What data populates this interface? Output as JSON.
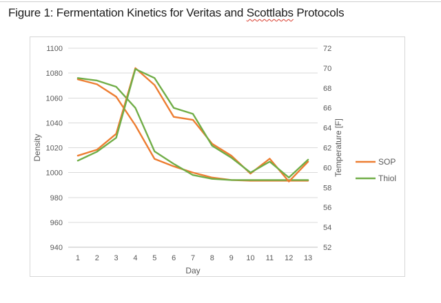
{
  "title": {
    "prefix": "Figure 1: Fermentation Kinetics for Veritas and ",
    "misspelled_word": "Scottlabs",
    "suffix": " Protocols"
  },
  "colors": {
    "sop_orange": "#ED7D31",
    "thiol_green": "#70AD47",
    "gridline": "#D9D9D9",
    "axis_line": "#BFBFBF",
    "tick_text": "#595959",
    "legend_text": "#404040",
    "spellcheck_red": "#d93a2b"
  },
  "chart_data": {
    "type": "line",
    "x": [
      1,
      2,
      3,
      4,
      5,
      6,
      7,
      8,
      9,
      10,
      11,
      12,
      13
    ],
    "xlabel": "Day",
    "y_left": {
      "label": "Density",
      "min": 940,
      "max": 1100,
      "ticks": [
        940,
        960,
        980,
        1000,
        1020,
        1040,
        1060,
        1080,
        1100
      ]
    },
    "y_right": {
      "label": "Temperature [F]",
      "min": 52,
      "max": 72,
      "ticks": [
        52,
        54,
        56,
        58,
        60,
        62,
        64,
        66,
        68,
        70,
        72
      ]
    },
    "grid": "horizontal",
    "legend_position": "right",
    "legend": [
      {
        "name": "SOP",
        "color": "#ED7D31"
      },
      {
        "name": "Thiol",
        "color": "#70AD47"
      }
    ],
    "series": [
      {
        "name": "SOP",
        "measure": "density",
        "axis": "left",
        "color": "#ED7D31",
        "values": [
          1075,
          1071,
          1061,
          1038,
          1011,
          1005,
          1000,
          996,
          994,
          993.5,
          993.5,
          993.5,
          993.5
        ]
      },
      {
        "name": "Thiol",
        "measure": "density",
        "axis": "left",
        "color": "#70AD47",
        "values": [
          1076,
          1074,
          1069,
          1052,
          1017,
          1007,
          998,
          995,
          994,
          994,
          994,
          994,
          994
        ]
      },
      {
        "name": "SOP",
        "measure": "temperature",
        "axis": "right",
        "color": "#ED7D31",
        "values": [
          61.2,
          61.8,
          63.4,
          70,
          68.3,
          65.1,
          64.8,
          62.4,
          61.2,
          59.4,
          60.9,
          58.6,
          60.6
        ]
      },
      {
        "name": "Thiol",
        "measure": "temperature",
        "axis": "right",
        "color": "#70AD47",
        "values": [
          60.7,
          61.6,
          63,
          69.9,
          69,
          66,
          65.4,
          62.2,
          61,
          59.5,
          60.6,
          59,
          60.8
        ]
      }
    ]
  }
}
